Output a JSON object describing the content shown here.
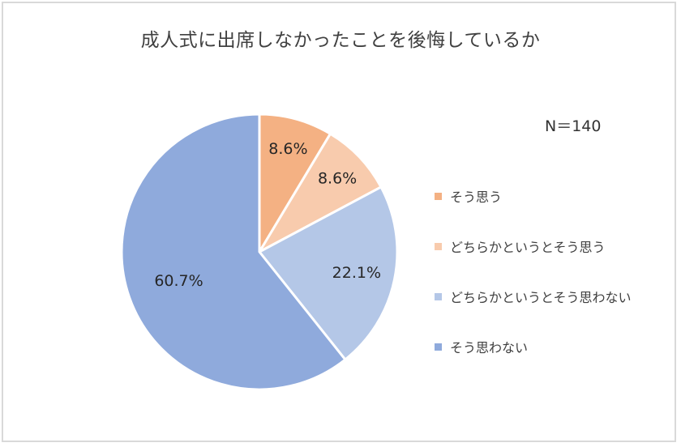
{
  "title": "成人式に出席しなかったことを後悔しているか",
  "sample_size_label": "N＝140",
  "legend": [
    {
      "label": "そう思う",
      "color": "#F4B183"
    },
    {
      "label": "どちらかというとそう思う",
      "color": "#F8CBAD"
    },
    {
      "label": "どちらかというとそう思わない",
      "color": "#B4C7E7"
    },
    {
      "label": "そう思わない",
      "color": "#8FAADC"
    }
  ],
  "slice_labels": [
    "8.6%",
    "8.6%",
    "22.1%",
    "60.7%"
  ],
  "chart_data": {
    "type": "pie",
    "title": "成人式に出席しなかったことを後悔しているか",
    "annotation": "N＝140",
    "categories": [
      "そう思う",
      "どちらかというとそう思う",
      "どちらかというとそう思わない",
      "そう思わない"
    ],
    "values": [
      8.6,
      8.6,
      22.1,
      60.7
    ],
    "unit": "%",
    "colors": [
      "#F4B183",
      "#F8CBAD",
      "#B4C7E7",
      "#8FAADC"
    ],
    "start_angle": "12 o'clock, clockwise",
    "legend_position": "right",
    "data_labels": true
  }
}
